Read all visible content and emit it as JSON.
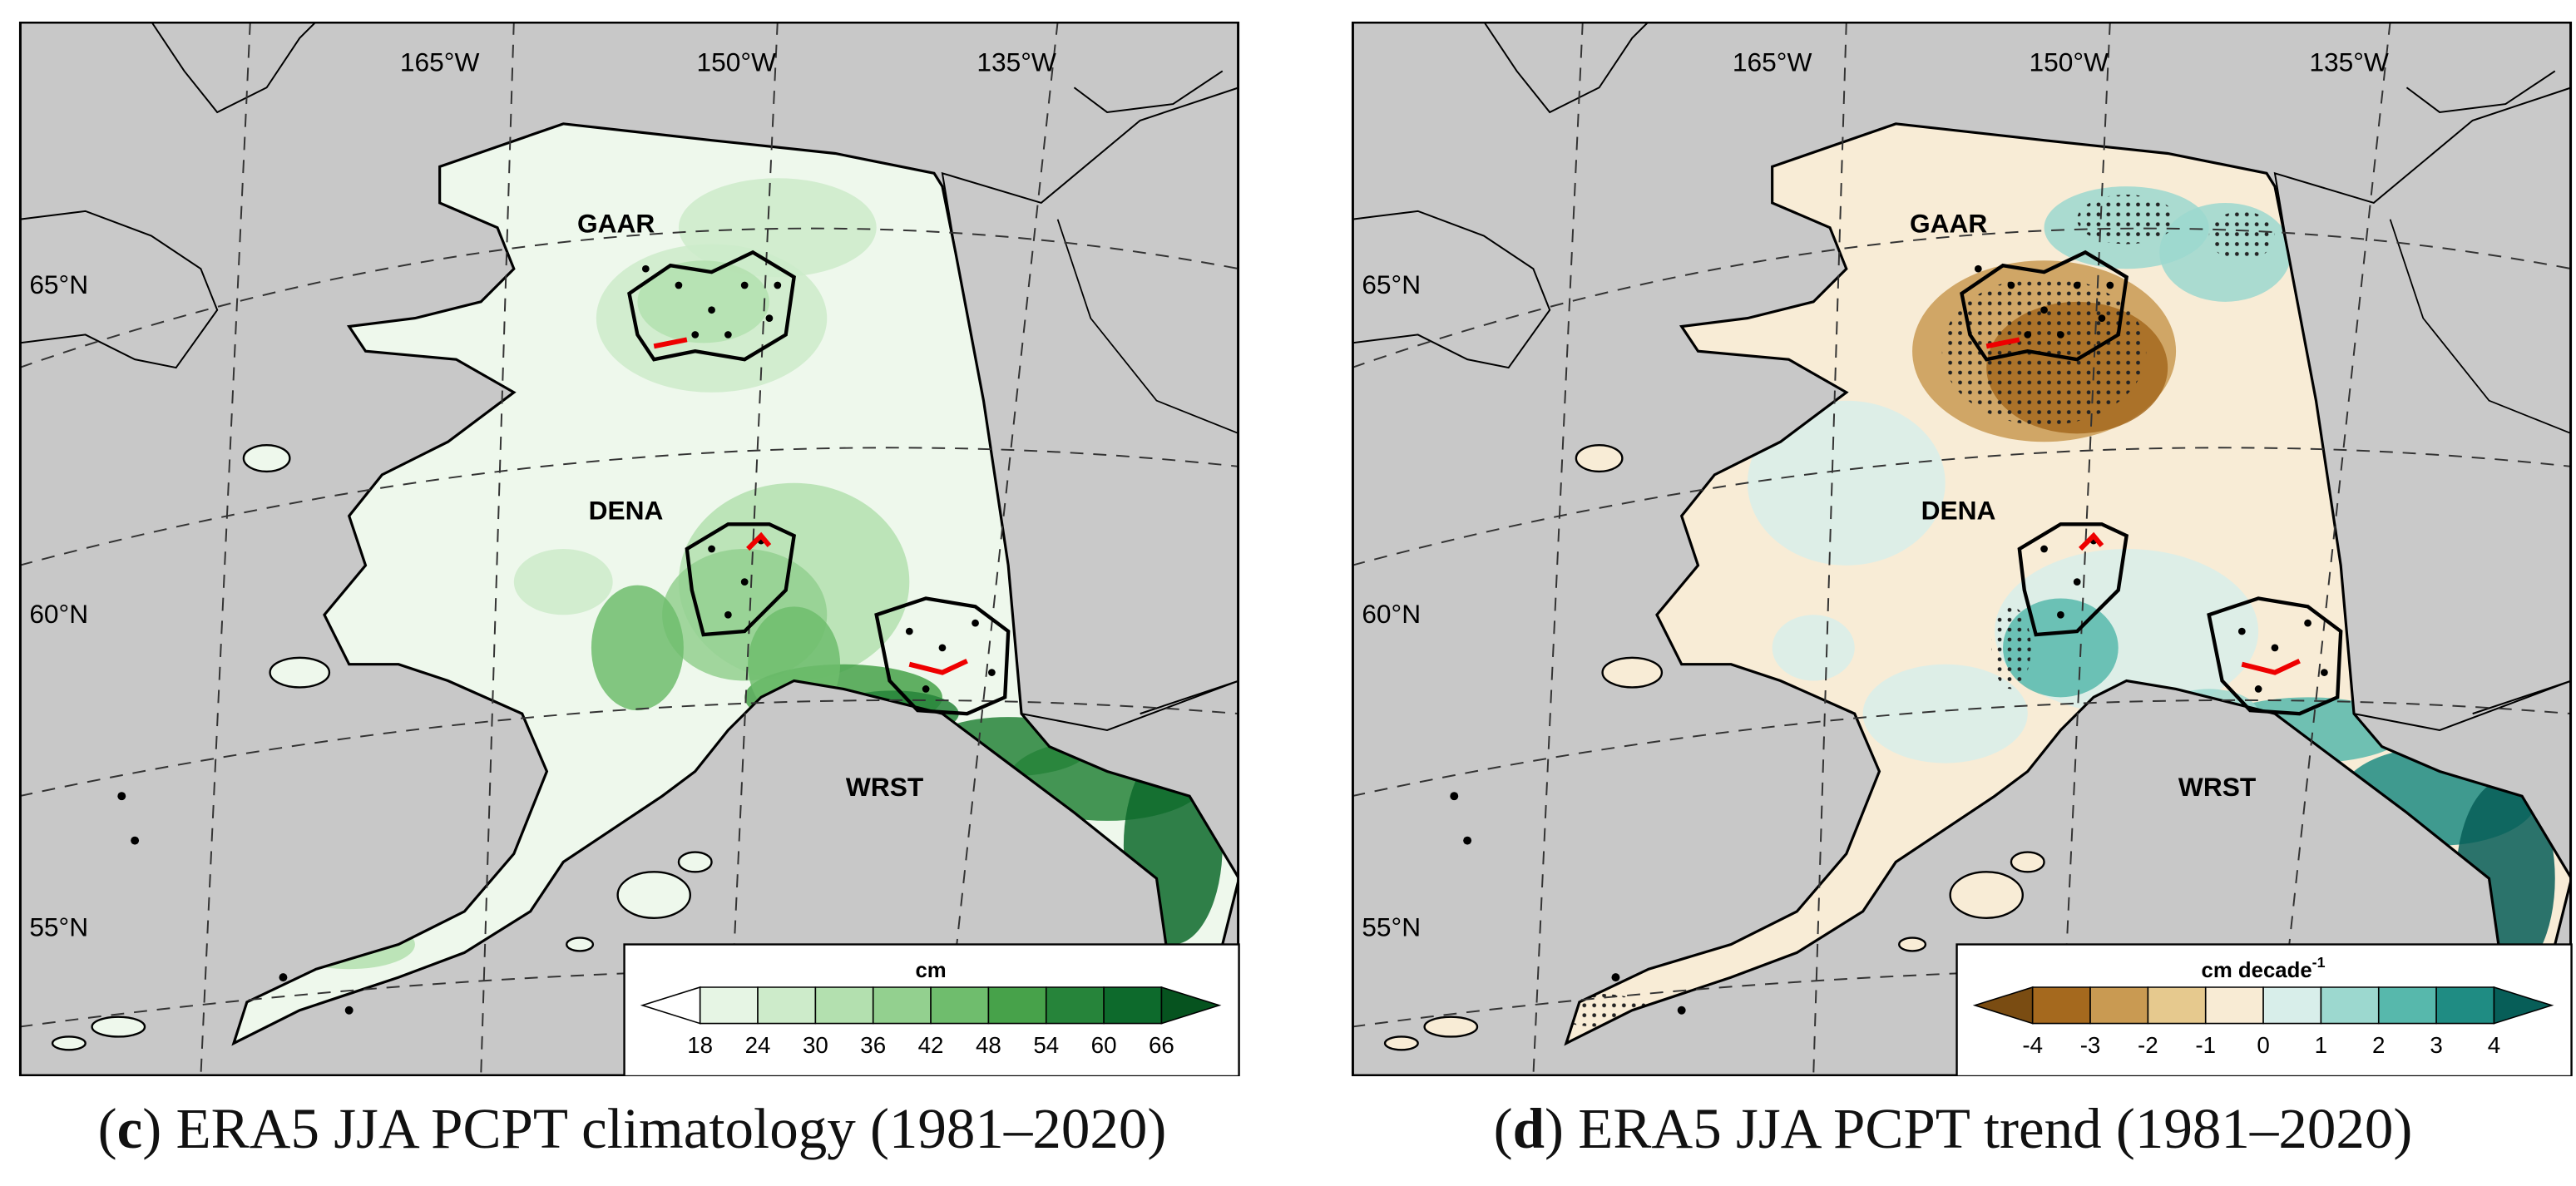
{
  "panels": [
    {
      "id": "c",
      "letter": "c",
      "caption_text": " ERA5 JJA PCPT climatology (1981–2020)",
      "longitude_labels": [
        "165°W",
        "150°W",
        "135°W"
      ],
      "latitude_labels": [
        "65°N",
        "60°N",
        "55°N"
      ],
      "park_labels": [
        "GAAR",
        "DENA",
        "WRST"
      ],
      "colorbar": {
        "title": "cm",
        "title_superscript": "",
        "tick_labels": [
          "18",
          "24",
          "30",
          "36",
          "42",
          "48",
          "54",
          "60",
          "66"
        ],
        "colors": [
          "#ffffff",
          "#e6f5e4",
          "#cdebca",
          "#b3e0af",
          "#93d08f",
          "#6fbd6d",
          "#47a24a",
          "#26843a",
          "#0d6a2c",
          "#06531f"
        ]
      },
      "land_base_color": "#eef8ec",
      "ocean_color": "#c8c8c8"
    },
    {
      "id": "d",
      "letter": "d",
      "caption_text": " ERA5 JJA PCPT trend (1981–2020)",
      "longitude_labels": [
        "165°W",
        "150°W",
        "135°W"
      ],
      "latitude_labels": [
        "65°N",
        "60°N",
        "55°N"
      ],
      "park_labels": [
        "GAAR",
        "DENA",
        "WRST"
      ],
      "colorbar": {
        "title": "cm decade",
        "title_superscript": "-1",
        "tick_labels": [
          "-4",
          "-3",
          "-2",
          "-1",
          "0",
          "1",
          "2",
          "3",
          "4"
        ],
        "colors": [
          "#7a4c12",
          "#a5691e",
          "#c99a52",
          "#e6c98e",
          "#f8ebd4",
          "#d8eeea",
          "#9cd8cf",
          "#57b8ac",
          "#1f8c83",
          "#075e58"
        ]
      },
      "land_base_color": "#f8ecd6",
      "ocean_color": "#c8c8c8"
    }
  ]
}
